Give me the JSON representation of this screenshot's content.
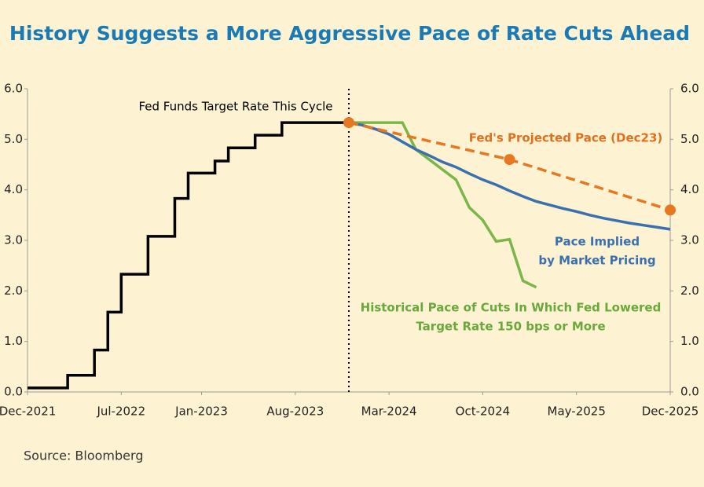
{
  "chart_data": {
    "type": "line",
    "title": "History Suggests a More Aggressive Pace of Rate Cuts Ahead",
    "source": "Source: Bloomberg",
    "x": [
      "Dec-2021",
      "Jan-2022",
      "Feb-2022",
      "Mar-2022",
      "Apr-2022",
      "May-2022",
      "Jun-2022",
      "Jul-2022",
      "Aug-2022",
      "Sep-2022",
      "Oct-2022",
      "Nov-2022",
      "Dec-2022",
      "Jan-2023",
      "Feb-2023",
      "Mar-2023",
      "Apr-2023",
      "May-2023",
      "Jun-2023",
      "Jul-2023",
      "Aug-2023",
      "Sep-2023",
      "Oct-2023",
      "Nov-2023",
      "Dec-2023",
      "Jan-2024",
      "Feb-2024",
      "Mar-2024",
      "Apr-2024",
      "May-2024",
      "Jun-2024",
      "Jul-2024",
      "Aug-2024",
      "Sep-2024",
      "Oct-2024",
      "Nov-2024",
      "Dec-2024",
      "Jan-2025",
      "Feb-2025",
      "Mar-2025",
      "Apr-2025",
      "May-2025",
      "Jun-2025",
      "Jul-2025",
      "Aug-2025",
      "Sep-2025",
      "Oct-2025",
      "Nov-2025",
      "Dec-2025"
    ],
    "xticks": [
      "Dec-2021",
      "Jul-2022",
      "Jan-2023",
      "Aug-2023",
      "Mar-2024",
      "Oct-2024",
      "May-2025",
      "Dec-2025"
    ],
    "vline": "Dec-2023",
    "ylim": [
      0,
      6
    ],
    "yticks": [
      {
        "value": 0,
        "label": "0.0"
      },
      {
        "value": 1,
        "label": "1.0"
      },
      {
        "value": 2,
        "label": "2.0"
      },
      {
        "value": 3,
        "label": "3.0"
      },
      {
        "value": 4,
        "label": "4.0"
      },
      {
        "value": 5,
        "label": "5.0"
      },
      {
        "value": 6,
        "label": "6.0"
      }
    ],
    "y2lim": [
      0,
      6
    ],
    "y2ticks": [
      {
        "value": 0,
        "label": "0.0"
      },
      {
        "value": 1,
        "label": "1.0"
      },
      {
        "value": 2,
        "label": "2.0"
      },
      {
        "value": 3,
        "label": "3.0"
      },
      {
        "value": 4,
        "label": "4.0"
      },
      {
        "value": 5,
        "label": "5.0"
      },
      {
        "value": 6,
        "label": "6.0"
      }
    ],
    "series": [
      {
        "label": [
          "Fed Funds Target Rate This Cycle"
        ],
        "color": "#000000",
        "label_color": "#000000",
        "step": true,
        "values": [
          0.08,
          0.08,
          0.08,
          0.33,
          0.33,
          0.83,
          1.58,
          2.33,
          2.33,
          3.08,
          3.08,
          3.83,
          4.33,
          4.33,
          4.57,
          4.83,
          4.83,
          5.08,
          5.08,
          5.33,
          5.33,
          5.33,
          5.33,
          5.33,
          5.33,
          null,
          null,
          null,
          null,
          null,
          null,
          null,
          null,
          null,
          null,
          null,
          null,
          null,
          null,
          null,
          null,
          null,
          null,
          null,
          null,
          null,
          null,
          null,
          null
        ]
      },
      {
        "label": [
          "Historical Pace of Cuts In Which Fed Lowered",
          "Target Rate 150 bps or More"
        ],
        "color": "#7ab648",
        "label_color": "#6aa83c",
        "values": [
          null,
          null,
          null,
          null,
          null,
          null,
          null,
          null,
          null,
          null,
          null,
          null,
          null,
          null,
          null,
          null,
          null,
          null,
          null,
          null,
          null,
          null,
          null,
          null,
          5.33,
          5.33,
          5.33,
          5.33,
          5.33,
          4.8,
          4.6,
          4.4,
          4.2,
          3.65,
          3.4,
          2.98,
          3.02,
          2.2,
          2.07,
          null,
          null,
          null,
          null,
          null,
          null,
          null,
          null,
          null,
          null
        ]
      },
      {
        "label": [
          "Pace Implied",
          "by Market Pricing"
        ],
        "color": "#3a6fb0",
        "label_color": "#3a6fb0",
        "values": [
          null,
          null,
          null,
          null,
          null,
          null,
          null,
          null,
          null,
          null,
          null,
          null,
          null,
          null,
          null,
          null,
          null,
          null,
          null,
          null,
          null,
          null,
          null,
          null,
          5.33,
          5.28,
          5.2,
          5.1,
          4.95,
          4.8,
          4.68,
          4.55,
          4.45,
          4.32,
          4.2,
          4.1,
          3.98,
          3.87,
          3.77,
          3.7,
          3.63,
          3.57,
          3.5,
          3.44,
          3.39,
          3.34,
          3.3,
          3.26,
          3.22
        ]
      },
      {
        "label": [
          "Fed's Projected Pace (Dec23)"
        ],
        "color": "#e87722",
        "label_color": "#e07020",
        "dashed": true,
        "markers": true,
        "x": [
          "Dec-2023",
          "Dec-2024",
          "Dec-2025"
        ],
        "values": [
          5.33,
          4.6,
          3.6
        ]
      }
    ]
  }
}
